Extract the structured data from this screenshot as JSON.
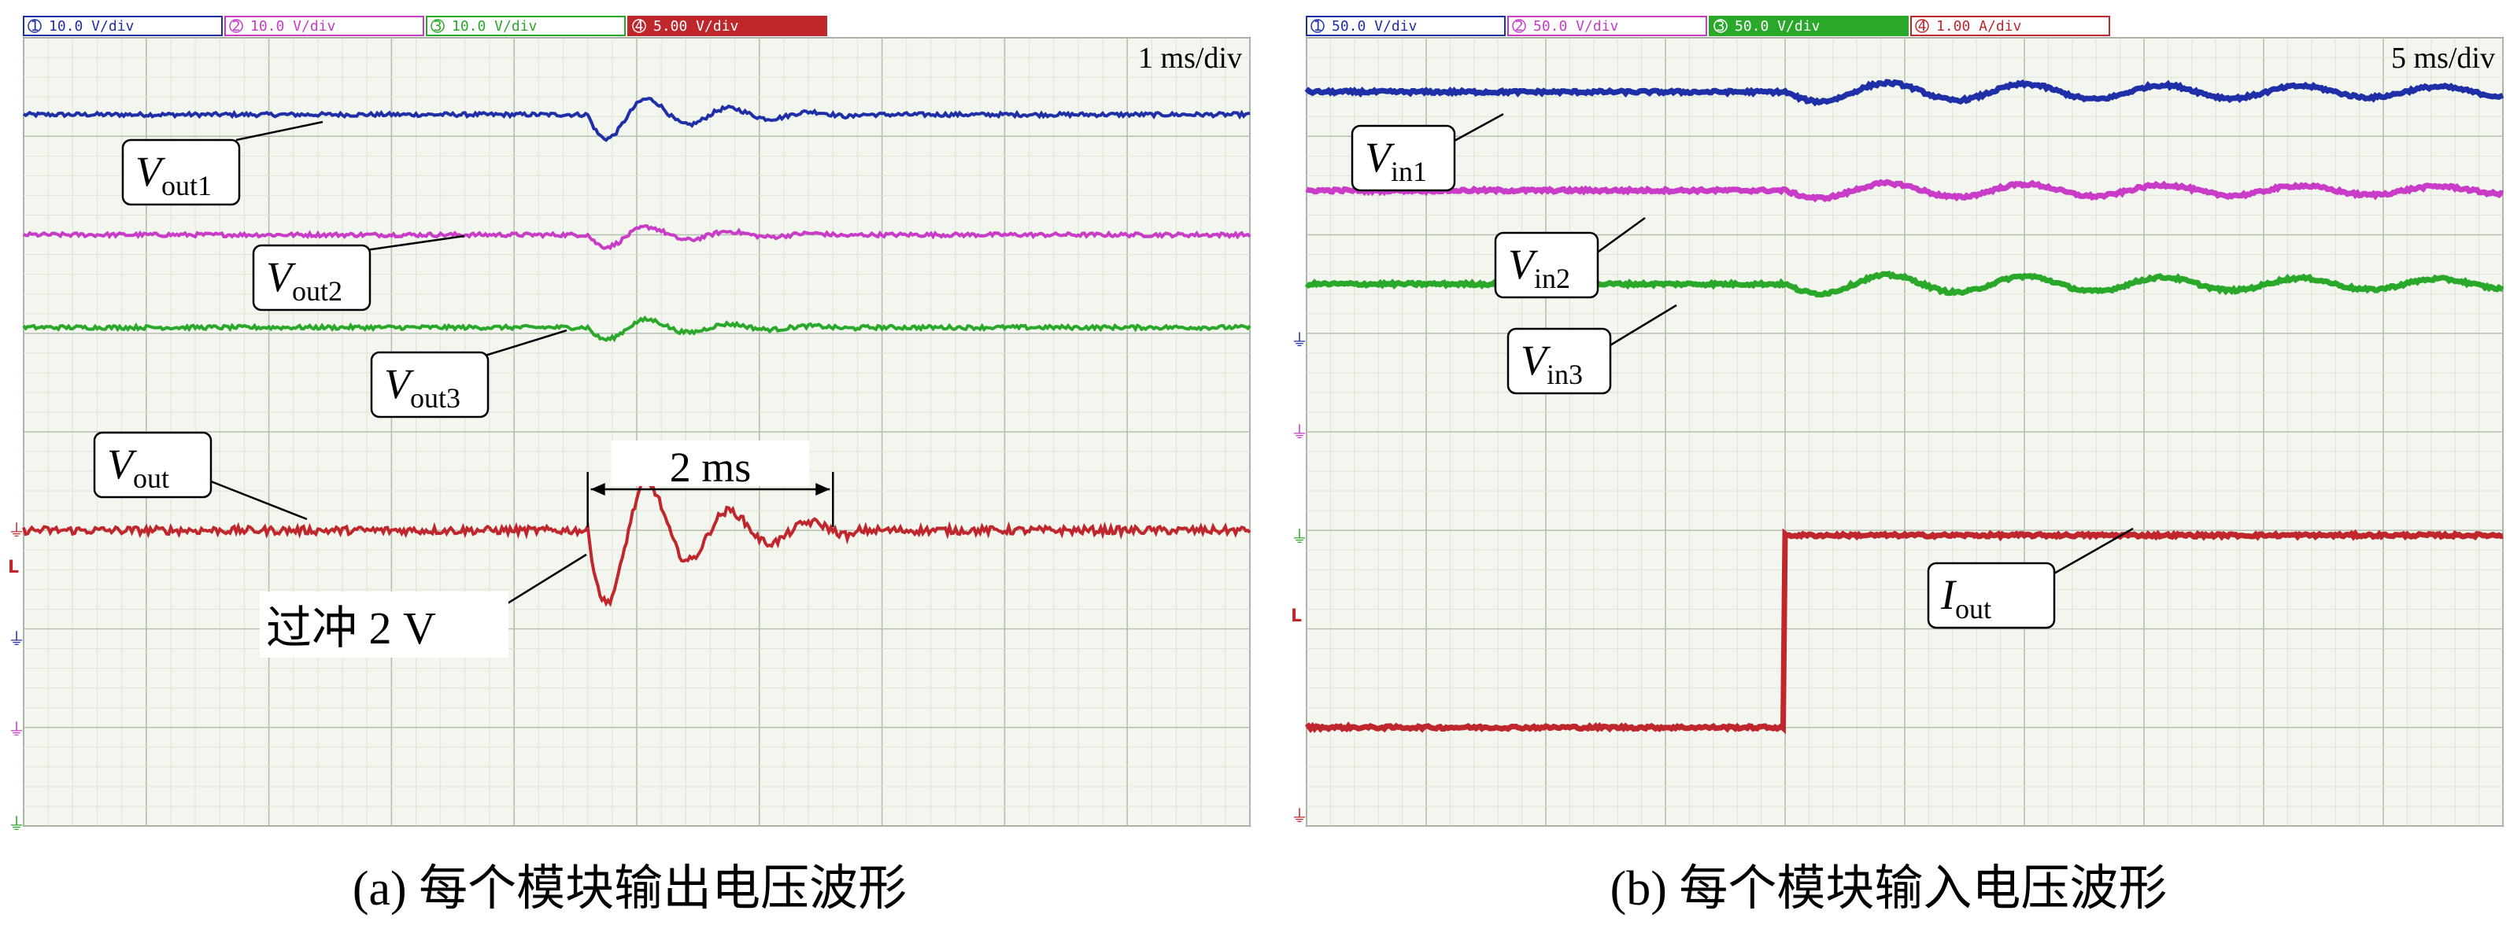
{
  "chart_data": [
    {
      "type": "line",
      "caption": "(a) 每个模块输出电压波形",
      "timebase": "1 ms/div",
      "channels": [
        {
          "id": "1",
          "scale": "10.0 V/div",
          "color": "#1f2fa8"
        },
        {
          "id": "2",
          "scale": "10.0 V/div",
          "color": "#c83cc8"
        },
        {
          "id": "3",
          "scale": "10.0 V/div",
          "color": "#2aa82a"
        },
        {
          "id": "4",
          "scale": "5.00 V/div",
          "color": "#c0272d"
        }
      ],
      "grid": {
        "divisions_x": 10,
        "divisions_y": 8,
        "on": true
      },
      "series": [
        {
          "name": "Vout1",
          "label_main": "V",
          "label_sub": "out1",
          "channel": "1",
          "level_div": 7.22,
          "disturbance_at_div": 4.6,
          "disturbance_amp_div": 0.1
        },
        {
          "name": "Vout2",
          "label_main": "V",
          "label_sub": "out2",
          "channel": "2",
          "level_div": 6.0,
          "disturbance_at_div": 4.6,
          "disturbance_amp_div": 0.05
        },
        {
          "name": "Vout3",
          "label_main": "V",
          "label_sub": "out3",
          "channel": "3",
          "level_div": 5.06,
          "disturbance_at_div": 4.6,
          "disturbance_amp_div": 0.05
        },
        {
          "name": "Vout",
          "label_main": "V",
          "label_sub": "out",
          "channel": "4",
          "level_div": 3.0,
          "disturbance_at_div": 4.6,
          "disturbance_amp_div": 0.3
        }
      ],
      "annotations": [
        {
          "text": "2 ms",
          "type": "span",
          "x_from_div": 4.6,
          "x_to_div": 6.6
        },
        {
          "text": "过冲 2 V",
          "type": "note"
        }
      ]
    },
    {
      "type": "line",
      "caption": "(b) 每个模块输入电压波形",
      "timebase": "5 ms/div",
      "channels": [
        {
          "id": "1",
          "scale": "50.0 V/div",
          "color": "#1f2fa8"
        },
        {
          "id": "2",
          "scale": "50.0 V/div",
          "color": "#c83cc8"
        },
        {
          "id": "3",
          "scale": "50.0 V/div",
          "color": "#2aa82a"
        },
        {
          "id": "4",
          "scale": "1.00 A/div",
          "color": "#c0272d"
        }
      ],
      "grid": {
        "divisions_x": 10,
        "divisions_y": 8,
        "on": true
      },
      "series": [
        {
          "name": "Vin1",
          "label_main": "V",
          "label_sub": "in1",
          "channel": "1",
          "level_div": 7.45,
          "step_at_div": 4.0,
          "osc_amp_div": 0.1
        },
        {
          "name": "Vin2",
          "label_main": "V",
          "label_sub": "in2",
          "channel": "2",
          "level_div": 6.45,
          "step_at_div": 4.0,
          "osc_amp_div": 0.08
        },
        {
          "name": "Vin3",
          "label_main": "V",
          "label_sub": "in3",
          "channel": "3",
          "level_div": 5.5,
          "step_at_div": 4.0,
          "osc_amp_div": 0.1
        },
        {
          "name": "Iout",
          "label_main": "I",
          "label_sub": "out",
          "channel": "4",
          "level_before_div": 1.0,
          "level_after_div": 2.95,
          "step_at_div": 4.0
        }
      ],
      "annotations": []
    }
  ]
}
